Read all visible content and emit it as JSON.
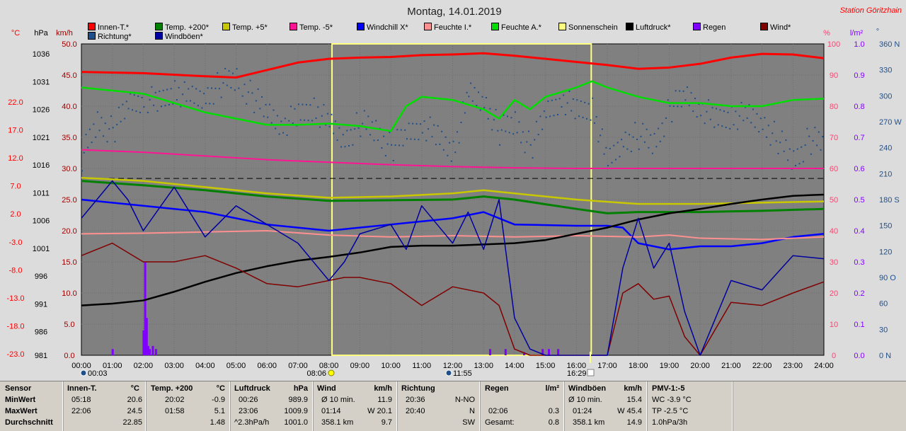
{
  "title": "Montag, 14.01.2019",
  "station": "Station Göritzhain",
  "legend": [
    {
      "label": "Innen-T.*",
      "color": "#ff0000"
    },
    {
      "label": "Temp. +200*",
      "color": "#008000"
    },
    {
      "label": "Temp. +5*",
      "color": "#c8c800"
    },
    {
      "label": "Temp. -5*",
      "color": "#ff1493"
    },
    {
      "label": "Windchill X*",
      "color": "#0000ff"
    },
    {
      "label": "Feuchte I.*",
      "color": "#ff9090"
    },
    {
      "label": "Feuchte A.*",
      "color": "#00dd00"
    },
    {
      "label": "Sonnenschein",
      "color": "#ffff80"
    },
    {
      "label": "Luftdruck*",
      "color": "#000000"
    },
    {
      "label": "Regen",
      "color": "#8000ff"
    },
    {
      "label": "Wind*",
      "color": "#800000"
    },
    {
      "label": "Richtung*",
      "color": "#1e4f8c"
    },
    {
      "label": "Windböen*",
      "color": "#0000a0"
    }
  ],
  "axes": {
    "unit_c": "°C",
    "unit_hpa": "hPa",
    "unit_kmh": "km/h",
    "unit_pct": "%",
    "unit_lm2": "l/m²",
    "unit_deg": "°",
    "celsius": [
      "22.0",
      "17.0",
      "12.0",
      "7.0",
      "2.0",
      "-3.0",
      "-8.0",
      "-13.0",
      "-18.0",
      "-23.0"
    ],
    "hpa": [
      "1036",
      "1031",
      "1026",
      "1021",
      "1016",
      "1011",
      "1006",
      "1001",
      "996",
      "991",
      "986",
      "981"
    ],
    "kmh": [
      "50.0",
      "45.0",
      "40.0",
      "35.0",
      "30.0",
      "25.0",
      "20.0",
      "15.0",
      "10.0",
      "5.0",
      "0.0"
    ],
    "pct": [
      "100",
      "90",
      "80",
      "70",
      "60",
      "50",
      "40",
      "30",
      "20",
      "10",
      "0"
    ],
    "rain": [
      "1.0",
      "0.9",
      "0.8",
      "0.7",
      "0.6",
      "0.5",
      "0.4",
      "0.3",
      "0.2",
      "0.1",
      "0.0"
    ],
    "deg": [
      "360 N",
      "330",
      "300",
      "270 W",
      "240",
      "210",
      "180 S",
      "150",
      "120",
      "90 O",
      "60",
      "30",
      "0 N"
    ],
    "hours": [
      "00:00",
      "01:00",
      "02:00",
      "03:00",
      "04:00",
      "05:00",
      "06:00",
      "07:00",
      "08:00",
      "09:00",
      "10:00",
      "11:00",
      "12:00",
      "13:00",
      "14:00",
      "15:00",
      "16:00",
      "17:00",
      "18:00",
      "19:00",
      "20:00",
      "21:00",
      "22:00",
      "23:00",
      "24:00"
    ]
  },
  "sun_markers": {
    "moon_set": "00:03",
    "sunrise": "08:06",
    "noon": "11:55",
    "sunset": "16:29"
  },
  "chart_data": {
    "type": "line",
    "x_unit": "hours",
    "xlim": [
      0,
      24
    ],
    "kmh_ylim": [
      0,
      50
    ],
    "sunshine_window": [
      8.1,
      16.48
    ],
    "series": [
      {
        "name": "Innen-T.*",
        "axis": "kmh",
        "color": "#ff0000",
        "x": [
          0,
          2,
          4,
          5,
          6,
          7,
          8,
          9,
          10,
          11,
          12,
          13,
          14,
          15,
          16,
          17,
          18,
          19,
          20,
          21,
          22,
          23,
          24
        ],
        "values": [
          45.5,
          45.3,
          44.8,
          44.6,
          45.8,
          47.0,
          47.6,
          47.8,
          47.9,
          48.2,
          48.3,
          48.5,
          48.1,
          47.6,
          47.1,
          46.6,
          46.0,
          46.2,
          46.8,
          47.8,
          48.4,
          48.3,
          47.7
        ]
      },
      {
        "name": "Feuchte A.*",
        "axis": "kmh",
        "color": "#00dd00",
        "x": [
          0,
          1,
          2,
          3,
          4,
          5,
          6,
          7,
          8,
          9,
          10,
          10.5,
          11,
          12,
          13,
          13.5,
          14,
          14.5,
          15,
          16,
          16.5,
          17,
          18,
          19,
          20,
          21,
          22,
          23,
          24
        ],
        "values": [
          43.0,
          42.5,
          42.0,
          40.5,
          39.0,
          38.0,
          37.0,
          37.0,
          37.2,
          36.8,
          36.0,
          40.0,
          41.5,
          41.0,
          39.5,
          38.0,
          41.0,
          39.5,
          41.5,
          43.0,
          44.0,
          43.0,
          41.5,
          40.5,
          40.5,
          40.0,
          40.0,
          41.0,
          41.2
        ]
      },
      {
        "name": "Temp. -5*",
        "axis": "kmh",
        "color": "#ff1493",
        "x": [
          0,
          2,
          4,
          6,
          8,
          10,
          12,
          14,
          16,
          18,
          20,
          22,
          24
        ],
        "values": [
          33.0,
          32.6,
          32.0,
          31.4,
          31.0,
          30.6,
          30.3,
          30.1,
          30.0,
          30.0,
          30.0,
          30.0,
          30.0
        ]
      },
      {
        "name": "Temp. +5*",
        "axis": "kmh",
        "color": "#c8c800",
        "x": [
          0,
          2,
          4,
          6,
          8,
          10,
          12,
          13,
          14,
          16,
          18,
          20,
          22,
          24
        ],
        "values": [
          28.5,
          28.0,
          27.0,
          26.0,
          25.3,
          25.5,
          26.0,
          26.5,
          26.0,
          25.0,
          24.3,
          24.3,
          24.5,
          24.7
        ]
      },
      {
        "name": "Temp. +200*",
        "axis": "kmh",
        "color": "#008000",
        "x": [
          0,
          2,
          4,
          6,
          8,
          10,
          12,
          13,
          14,
          16,
          17,
          18,
          20,
          22,
          24
        ],
        "values": [
          28.0,
          27.3,
          26.5,
          25.5,
          24.8,
          24.9,
          25.0,
          25.5,
          25.0,
          23.5,
          22.8,
          23.0,
          23.0,
          23.2,
          23.5
        ]
      },
      {
        "name": "Windchill X*",
        "axis": "kmh",
        "color": "#0000ff",
        "x": [
          0,
          2,
          4,
          6,
          8,
          10,
          12,
          13,
          14,
          16,
          17,
          17.5,
          18,
          19,
          20,
          21,
          22,
          23,
          24
        ],
        "values": [
          25.0,
          24.0,
          23.0,
          21.0,
          20.0,
          21.0,
          22.0,
          23.0,
          21.0,
          20.8,
          20.8,
          20.5,
          18.0,
          17.0,
          17.5,
          17.5,
          18.0,
          19.0,
          19.5
        ]
      },
      {
        "name": "Feuchte I.*",
        "axis": "kmh",
        "color": "#ff9090",
        "x": [
          0,
          2,
          4,
          6,
          8,
          10,
          12,
          14,
          16,
          18,
          19,
          20,
          22,
          24
        ],
        "values": [
          19.5,
          19.6,
          19.8,
          20.0,
          19.3,
          19.0,
          19.2,
          19.0,
          19.2,
          19.0,
          19.3,
          18.8,
          18.6,
          19.0
        ]
      },
      {
        "name": "Luftdruck*",
        "axis": "kmh",
        "color": "#000000",
        "x": [
          0,
          1,
          2,
          3,
          4,
          5,
          6,
          7,
          8,
          9,
          10,
          11,
          12,
          13,
          14,
          15,
          16,
          17,
          18,
          19,
          20,
          21,
          22,
          23,
          24
        ],
        "values": [
          8.0,
          8.3,
          8.8,
          10.2,
          11.8,
          13.2,
          14.3,
          15.2,
          15.8,
          16.5,
          17.4,
          17.6,
          17.6,
          17.8,
          18.0,
          18.5,
          19.5,
          20.5,
          21.8,
          22.8,
          23.5,
          24.3,
          25.0,
          25.6,
          25.8
        ]
      },
      {
        "name": "Wind*",
        "axis": "kmh",
        "color": "#800000",
        "x": [
          0,
          1,
          2,
          3,
          4,
          5,
          6,
          7,
          8,
          8.5,
          9,
          10,
          11,
          12,
          13,
          13.5,
          14,
          14.5,
          15,
          16,
          16.5,
          17,
          17.5,
          18,
          18.5,
          19,
          19.5,
          20,
          21,
          22,
          23,
          24
        ],
        "values": [
          16.0,
          18.0,
          15.0,
          15.0,
          16.0,
          14.0,
          11.5,
          11.0,
          12.0,
          12.5,
          12.5,
          11.5,
          8.0,
          11.0,
          10.0,
          8.0,
          1.0,
          0.0,
          0.0,
          0.0,
          0.0,
          0.0,
          10.0,
          11.5,
          9.0,
          9.5,
          3.0,
          0.0,
          8.5,
          8.0,
          10.0,
          11.8
        ]
      },
      {
        "name": "Windböen*",
        "axis": "kmh",
        "color": "#0000a0",
        "x": [
          0,
          1,
          1.5,
          2,
          3,
          4,
          5,
          6,
          7,
          8,
          8.5,
          9,
          10,
          10.5,
          11,
          12,
          12.5,
          13,
          13.5,
          14,
          14.5,
          15,
          16,
          16.5,
          17,
          17.5,
          18,
          18.5,
          19,
          19.5,
          20,
          21,
          22,
          23,
          24
        ],
        "values": [
          22.0,
          28.0,
          25.0,
          20.0,
          27.0,
          19.0,
          24.0,
          21.0,
          18.0,
          12.0,
          15.0,
          19.5,
          21.0,
          17.0,
          24.0,
          18.0,
          23.0,
          17.0,
          25.0,
          6.0,
          1.0,
          0.0,
          0.0,
          0.0,
          0.0,
          14.0,
          22.0,
          14.0,
          18.0,
          7.0,
          0.0,
          12.0,
          10.5,
          16.0,
          15.5
        ]
      }
    ],
    "rain": {
      "name": "Regen",
      "axis": "rain",
      "color": "#8000ff",
      "x": [
        1.0,
        2.0,
        2.05,
        2.1,
        2.15,
        2.2,
        2.3,
        2.4,
        13.2,
        13.7,
        14.3,
        14.9,
        15.1,
        15.4
      ],
      "values": [
        0.02,
        0.08,
        0.3,
        0.12,
        0.03,
        0.02,
        0.03,
        0.02,
        0.02,
        0.02,
        0.01,
        0.02,
        0.02,
        0.02
      ]
    },
    "direction": {
      "name": "Richtung*",
      "axis": "deg",
      "color": "#1e4f8c",
      "x": [
        0,
        0.5,
        1,
        1.5,
        2,
        2.5,
        3,
        3.5,
        4,
        4.5,
        5,
        5.5,
        6,
        6.5,
        7,
        7.5,
        8,
        8.5,
        9,
        9.5,
        10,
        10.5,
        11,
        11.5,
        12,
        12.5,
        13,
        13.5,
        14,
        14.5,
        15,
        15.5,
        16,
        16.5,
        17,
        17.5,
        18,
        18.5,
        19,
        19.5,
        20,
        20.5,
        21,
        21.5,
        22,
        22.5,
        23,
        23.5,
        24
      ],
      "values": [
        230,
        270,
        260,
        290,
        300,
        290,
        310,
        295,
        300,
        315,
        320,
        300,
        280,
        270,
        275,
        290,
        265,
        250,
        270,
        260,
        240,
        255,
        270,
        250,
        240,
        300,
        295,
        260,
        270,
        240,
        280,
        300,
        280,
        290,
        220,
        250,
        255,
        245,
        285,
        300,
        290,
        270,
        280,
        275,
        270,
        250,
        225,
        250,
        245
      ]
    },
    "reference_line": {
      "axis": "kmh",
      "value": 28.4
    }
  },
  "stats": {
    "sensor": {
      "title": "Sensor",
      "rows": [
        "MinWert",
        "MaxWert",
        "Durchschnitt"
      ]
    },
    "innen": {
      "title": "Innen-T.",
      "unit": "°C",
      "rows": [
        [
          "05:18",
          "20.6"
        ],
        [
          "22:06",
          "24.5"
        ],
        [
          "",
          "22.85"
        ]
      ]
    },
    "temp200": {
      "title": "Temp. +200",
      "unit": "°C",
      "rows": [
        [
          "20:02",
          "-0.9"
        ],
        [
          "01:58",
          "5.1"
        ],
        [
          "",
          "1.48"
        ]
      ]
    },
    "luft": {
      "title": "Luftdruck",
      "unit": "hPa",
      "rows": [
        [
          "00:26",
          "989.9"
        ],
        [
          "23:06",
          "1009.9"
        ],
        [
          "^2.3hPa/h",
          "1001.0"
        ]
      ]
    },
    "wind": {
      "title": "Wind",
      "unit": "km/h",
      "rows": [
        [
          "Ø 10 min.",
          "11.9"
        ],
        [
          "01:14",
          "W 20.1"
        ],
        [
          "358.1 km",
          "9.7"
        ]
      ]
    },
    "richtung": {
      "title": "Richtung",
      "rows": [
        [
          "20:36",
          "N-NO"
        ],
        [
          "20:40",
          "N"
        ],
        [
          "",
          "SW"
        ]
      ]
    },
    "regen": {
      "title": "Regen",
      "unit": "l/m²",
      "rows": [
        [
          "",
          ""
        ],
        [
          "02:06",
          "0.3"
        ],
        [
          "Gesamt:",
          "0.8"
        ]
      ]
    },
    "boeen": {
      "title": "Windböen",
      "unit": "km/h",
      "rows": [
        [
          "Ø 10 min.",
          "15.4"
        ],
        [
          "01:24",
          "W 45.4"
        ],
        [
          "358.1 km",
          "14.9"
        ]
      ]
    },
    "pmv": {
      "title": "PMV-1:-5",
      "rows": [
        "WC -3.9 °C",
        "TP -2.5 °C",
        "1.0hPa/3h"
      ]
    }
  }
}
